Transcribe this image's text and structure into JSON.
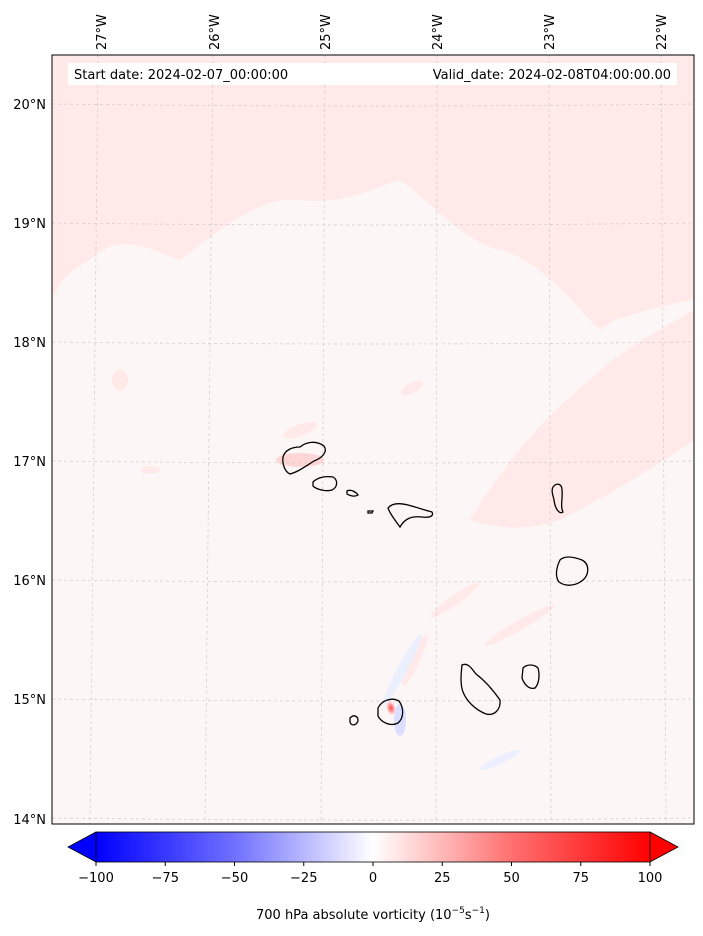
{
  "map": {
    "start_label": "Start date: 2024-02-07_00:00:00",
    "valid_label": "Valid_date: 2024-02-08T04:00:00.00",
    "lon_ticks": [
      "27°W",
      "26°W",
      "25°W",
      "24°W",
      "23°W",
      "22°W"
    ],
    "lat_ticks": [
      "20°N",
      "19°N",
      "18°N",
      "17°N",
      "16°N",
      "15°N",
      "14°N"
    ],
    "colorbar": {
      "ticks": [
        "−100",
        "−75",
        "−50",
        "−25",
        "0",
        "25",
        "50",
        "75",
        "100"
      ],
      "label_main": "700 hPa absolute vorticity (10",
      "label_exp1": "−5",
      "label_mid": "s",
      "label_exp2": "−1",
      "label_end": ")",
      "min": -100,
      "max": 100,
      "low_color": "#0000ff",
      "mid_color": "#ffffff",
      "high_color": "#ff0000"
    },
    "colors": {
      "background": "#fdf6f6",
      "pink_band": "#ffe9e9",
      "grid": "#cccccc",
      "coast": "#000000"
    }
  }
}
